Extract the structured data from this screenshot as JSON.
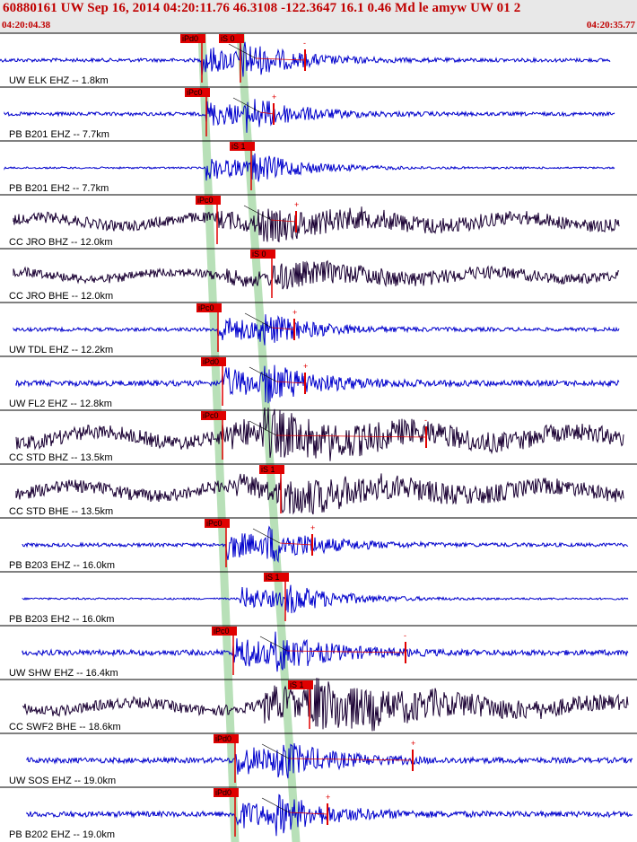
{
  "header": {
    "event_line": "60880161 UW Sep 16, 2014 04:20:11.76   46.3108 -122.3647 16.1 0.46 Md le amyw UW 01   2",
    "start_time": "04:20:04.38",
    "end_time": "04:20:35.77"
  },
  "colors": {
    "header_text": "#c00000",
    "header_bg": "#e8e8e8",
    "trace_blue": "#0000cc",
    "trace_dark": "#1a0033",
    "pick_red": "#e00000",
    "window_green": "#b8e0b8"
  },
  "traces": [
    {
      "label": "UW ELK EHZ -- 1.8km",
      "color": "blue",
      "amp": [
        2,
        22
      ],
      "p": {
        "text": "iPd0",
        "t": 225
      },
      "s": {
        "text": "iS 0",
        "t": 268
      },
      "cutoff": 340,
      "ends": [
        0,
        680
      ],
      "plus": "-"
    },
    {
      "label": "PB B201 EHZ -- 7.7km",
      "color": "blue",
      "amp": [
        2,
        20
      ],
      "p": {
        "text": "iPc0",
        "t": 230
      },
      "s": null,
      "cutoff": 305,
      "ends": [
        5,
        685
      ],
      "plus": "+"
    },
    {
      "label": "PB B201 EH2 -- 7.7km",
      "color": "blue",
      "amp": [
        1,
        18
      ],
      "p": null,
      "s": {
        "text": "iS 1",
        "t": 280
      },
      "cutoff": null,
      "ends": [
        5,
        685
      ],
      "plus": ""
    },
    {
      "label": "CC JRO BHZ -- 12.0km",
      "color": "dark",
      "amp": [
        6,
        14
      ],
      "p": {
        "text": "iPc0",
        "t": 242
      },
      "s": null,
      "cutoff": 330,
      "ends": [
        15,
        690
      ],
      "plus": "+"
    },
    {
      "label": "CC JRO BHE -- 12.0km",
      "color": "dark",
      "amp": [
        5,
        12
      ],
      "p": null,
      "s": {
        "text": "iS 0",
        "t": 303
      },
      "cutoff": null,
      "ends": [
        15,
        690
      ],
      "plus": ""
    },
    {
      "label": "UW TDL EHZ -- 12.2km",
      "color": "blue",
      "amp": [
        2,
        20
      ],
      "p": {
        "text": "iPc0",
        "t": 243
      },
      "s": null,
      "cutoff": 328,
      "ends": [
        15,
        690
      ],
      "plus": "+"
    },
    {
      "label": "UW FL2 EHZ -- 12.8km",
      "color": "blue",
      "amp": [
        3,
        24
      ],
      "p": {
        "text": "iPd0",
        "t": 248
      },
      "s": null,
      "cutoff": 340,
      "ends": [
        18,
        690
      ],
      "plus": "+"
    },
    {
      "label": "CC STD BHZ -- 13.5km",
      "color": "dark",
      "amp": [
        8,
        22
      ],
      "p": {
        "text": "iPc0",
        "t": 248
      },
      "s": null,
      "cutoff": 475,
      "ends": [
        18,
        695
      ],
      "plus": "-"
    },
    {
      "label": "CC STD BHE -- 13.5km",
      "color": "dark",
      "amp": [
        7,
        18
      ],
      "p": null,
      "s": {
        "text": "iS 1",
        "t": 313
      },
      "cutoff": null,
      "ends": [
        18,
        695
      ],
      "plus": ""
    },
    {
      "label": "PB B203 EHZ -- 16.0km",
      "color": "blue",
      "amp": [
        2,
        22
      ],
      "p": {
        "text": "iPc0",
        "t": 252
      },
      "s": null,
      "cutoff": 348,
      "ends": [
        25,
        700
      ],
      "plus": "+"
    },
    {
      "label": "PB B203 EH2 -- 16.0km",
      "color": "blue",
      "amp": [
        1,
        18
      ],
      "p": null,
      "s": {
        "text": "iS 1",
        "t": 318
      },
      "cutoff": null,
      "ends": [
        25,
        700
      ],
      "plus": ""
    },
    {
      "label": "UW SHW EHZ -- 16.4km",
      "color": "blue",
      "amp": [
        3,
        24
      ],
      "p": {
        "text": "iPc0",
        "t": 260
      },
      "s": null,
      "cutoff": 452,
      "ends": [
        25,
        700
      ],
      "plus": "-"
    },
    {
      "label": "CC SWF2 BHE -- 18.6km",
      "color": "dark",
      "amp": [
        6,
        28
      ],
      "p": null,
      "s": {
        "text": "iS 1",
        "t": 345
      },
      "cutoff": null,
      "ends": [
        25,
        700
      ],
      "plus": ""
    },
    {
      "label": "UW SOS EHZ -- 19.0km",
      "color": "blue",
      "amp": [
        3,
        24
      ],
      "p": {
        "text": "iPd0",
        "t": 262
      },
      "s": null,
      "cutoff": 460,
      "ends": [
        30,
        705
      ],
      "plus": "+"
    },
    {
      "label": "PB B202 EHZ -- 19.0km",
      "color": "blue",
      "amp": [
        3,
        22
      ],
      "p": {
        "text": "iPd0",
        "t": 262
      },
      "s": null,
      "cutoff": 365,
      "ends": [
        30,
        705
      ],
      "plus": "+"
    }
  ]
}
